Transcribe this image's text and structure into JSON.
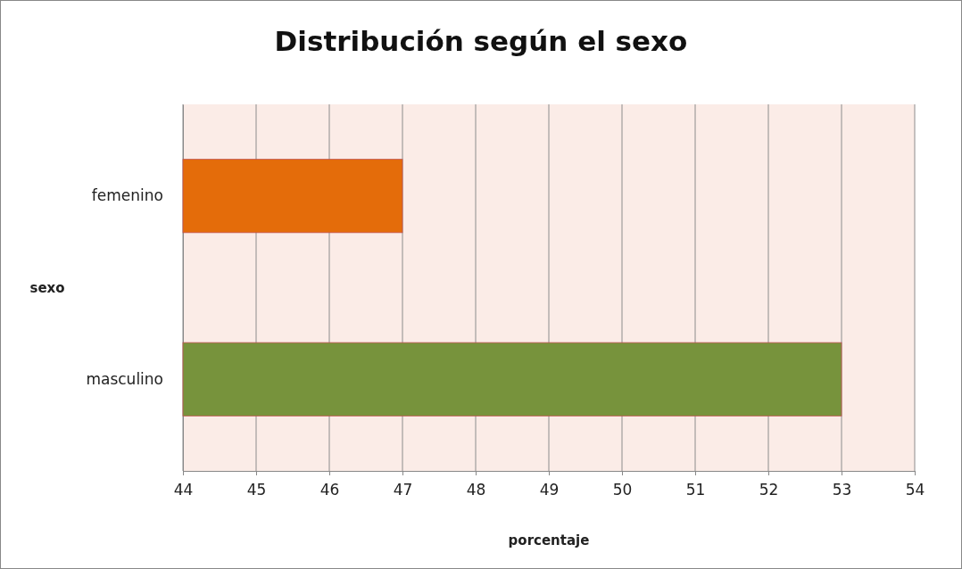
{
  "chart_data": {
    "type": "bar",
    "orientation": "horizontal",
    "title": "Distribución según el sexo",
    "xlabel": "porcentaje",
    "ylabel": "sexo",
    "categories": [
      "femenino",
      "masculino"
    ],
    "values": [
      47,
      53
    ],
    "colors": [
      "#e46c0a",
      "#77933c"
    ],
    "xlim": [
      44,
      54
    ],
    "xticks": [
      44,
      45,
      46,
      47,
      48,
      49,
      50,
      51,
      52,
      53,
      54
    ],
    "grid": "x"
  }
}
